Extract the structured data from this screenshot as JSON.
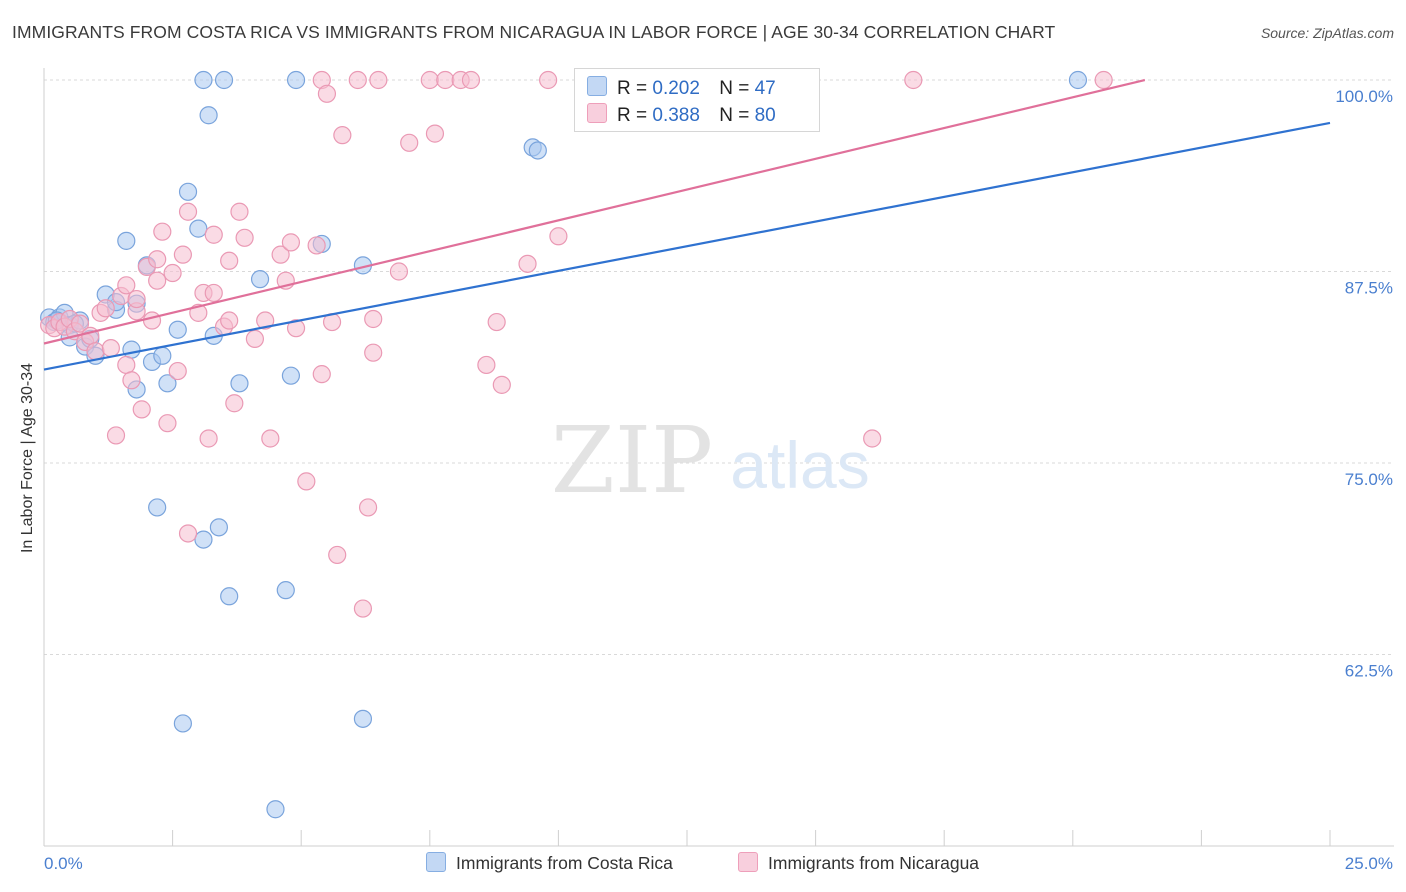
{
  "title": "IMMIGRANTS FROM COSTA RICA VS IMMIGRANTS FROM NICARAGUA IN LABOR FORCE | AGE 30-34 CORRELATION CHART",
  "source": "Source: ZipAtlas.com",
  "watermark": {
    "zip": "ZIP",
    "atlas": "atlas"
  },
  "colors": {
    "blue_fill": "#aac8f0",
    "blue_stroke": "#7aa4dc",
    "blue_line": "#2f72d0",
    "pink_fill": "#f5bdd0",
    "pink_stroke": "#ea99b4",
    "pink_line": "#e0709a",
    "tick_label": "#4a7fcf",
    "grid": "#d9d9d9"
  },
  "legend": {
    "r_label": "R =",
    "n_label": "N =",
    "rows": [
      {
        "series": "Immigrants from Costa Rica",
        "r": "0.202",
        "n": "47"
      },
      {
        "series": "Immigrants from Nicaragua",
        "r": "0.388",
        "n": "80"
      }
    ]
  },
  "chart_data": {
    "type": "scatter",
    "title": "IMMIGRANTS FROM COSTA RICA VS IMMIGRANTS FROM NICARAGUA IN LABOR FORCE | AGE 30-34 CORRELATION CHART",
    "xlabel": "",
    "ylabel": "In Labor Force | Age 30-34",
    "xlim": [
      0,
      25
    ],
    "ylim": [
      50,
      100
    ],
    "x_tick_labels": [
      "0.0%",
      "25.0%"
    ],
    "y_ticks": [
      62.5,
      75.0,
      87.5,
      100.0
    ],
    "y_tick_labels": [
      "62.5%",
      "75.0%",
      "87.5%",
      "100.0%"
    ],
    "grid": true,
    "legend_position": "top-center",
    "series": [
      {
        "name": "Immigrants from Costa Rica",
        "r": 0.202,
        "n": 47,
        "trend": {
          "x": [
            0,
            25
          ],
          "y": [
            81.1,
            97.2
          ]
        },
        "points": [
          [
            0.1,
            84.5
          ],
          [
            0.2,
            84.2
          ],
          [
            0.3,
            84.5
          ],
          [
            0.4,
            84.8
          ],
          [
            0.5,
            84.0
          ],
          [
            0.5,
            83.2
          ],
          [
            0.7,
            84.3
          ],
          [
            0.8,
            82.6
          ],
          [
            0.9,
            83.1
          ],
          [
            1.0,
            82.0
          ],
          [
            1.2,
            86.0
          ],
          [
            1.4,
            85.0
          ],
          [
            1.4,
            85.5
          ],
          [
            1.6,
            89.5
          ],
          [
            1.7,
            82.4
          ],
          [
            1.8,
            79.8
          ],
          [
            1.8,
            85.4
          ],
          [
            2.0,
            87.9
          ],
          [
            2.1,
            81.6
          ],
          [
            2.2,
            72.1
          ],
          [
            2.3,
            82.0
          ],
          [
            2.4,
            80.2
          ],
          [
            2.6,
            83.7
          ],
          [
            2.7,
            58.0
          ],
          [
            2.8,
            92.7
          ],
          [
            3.0,
            90.3
          ],
          [
            3.1,
            70.0
          ],
          [
            3.1,
            100.0
          ],
          [
            3.2,
            97.7
          ],
          [
            3.3,
            83.3
          ],
          [
            3.4,
            70.8
          ],
          [
            3.5,
            100.0
          ],
          [
            3.6,
            66.3
          ],
          [
            3.8,
            80.2
          ],
          [
            4.2,
            87.0
          ],
          [
            4.5,
            52.4
          ],
          [
            4.7,
            66.7
          ],
          [
            4.8,
            80.7
          ],
          [
            4.9,
            100.0
          ],
          [
            5.4,
            89.3
          ],
          [
            6.2,
            87.9
          ],
          [
            6.2,
            58.3
          ],
          [
            9.5,
            95.6
          ],
          [
            9.6,
            95.4
          ],
          [
            20.1,
            100.0
          ],
          [
            0.25,
            84.3
          ],
          [
            0.6,
            84.1
          ]
        ]
      },
      {
        "name": "Immigrants from Nicaragua",
        "r": 0.388,
        "n": 80,
        "trend": {
          "x": [
            0,
            21.4
          ],
          "y": [
            82.8,
            100.0
          ]
        },
        "points": [
          [
            0.1,
            84.0
          ],
          [
            0.2,
            83.8
          ],
          [
            0.3,
            84.2
          ],
          [
            0.4,
            83.9
          ],
          [
            0.5,
            84.4
          ],
          [
            0.6,
            83.6
          ],
          [
            0.7,
            84.1
          ],
          [
            0.8,
            82.9
          ],
          [
            0.9,
            83.3
          ],
          [
            1.0,
            82.3
          ],
          [
            1.1,
            84.8
          ],
          [
            1.2,
            85.1
          ],
          [
            1.3,
            82.5
          ],
          [
            1.4,
            76.8
          ],
          [
            1.5,
            85.9
          ],
          [
            1.6,
            81.4
          ],
          [
            1.6,
            86.6
          ],
          [
            1.7,
            80.4
          ],
          [
            1.8,
            84.9
          ],
          [
            1.8,
            85.7
          ],
          [
            1.9,
            78.5
          ],
          [
            2.0,
            87.8
          ],
          [
            2.1,
            84.3
          ],
          [
            2.2,
            88.3
          ],
          [
            2.2,
            86.9
          ],
          [
            2.3,
            90.1
          ],
          [
            2.4,
            77.6
          ],
          [
            2.5,
            87.4
          ],
          [
            2.6,
            81.0
          ],
          [
            2.7,
            88.6
          ],
          [
            2.8,
            91.4
          ],
          [
            2.8,
            70.4
          ],
          [
            3.0,
            84.8
          ],
          [
            3.1,
            86.1
          ],
          [
            3.2,
            76.6
          ],
          [
            3.3,
            86.1
          ],
          [
            3.3,
            89.9
          ],
          [
            3.5,
            83.9
          ],
          [
            3.6,
            84.3
          ],
          [
            3.6,
            88.2
          ],
          [
            3.7,
            78.9
          ],
          [
            3.8,
            91.4
          ],
          [
            3.9,
            89.7
          ],
          [
            4.1,
            83.1
          ],
          [
            4.3,
            84.3
          ],
          [
            4.4,
            76.6
          ],
          [
            4.6,
            88.6
          ],
          [
            4.7,
            86.9
          ],
          [
            4.8,
            89.4
          ],
          [
            4.9,
            83.8
          ],
          [
            5.1,
            73.8
          ],
          [
            5.3,
            89.2
          ],
          [
            5.4,
            80.8
          ],
          [
            5.4,
            100.0
          ],
          [
            5.5,
            99.1
          ],
          [
            5.6,
            84.2
          ],
          [
            5.7,
            69.0
          ],
          [
            5.8,
            96.4
          ],
          [
            6.1,
            100.0
          ],
          [
            6.2,
            65.5
          ],
          [
            6.3,
            72.1
          ],
          [
            6.4,
            84.4
          ],
          [
            6.4,
            82.2
          ],
          [
            6.5,
            100.0
          ],
          [
            6.9,
            87.5
          ],
          [
            7.1,
            95.9
          ],
          [
            7.5,
            100.0
          ],
          [
            7.6,
            96.5
          ],
          [
            7.8,
            100.0
          ],
          [
            8.1,
            100.0
          ],
          [
            8.3,
            100.0
          ],
          [
            8.6,
            81.4
          ],
          [
            8.8,
            84.2
          ],
          [
            8.9,
            80.1
          ],
          [
            9.4,
            88.0
          ],
          [
            9.8,
            100.0
          ],
          [
            10.0,
            89.8
          ],
          [
            16.1,
            76.6
          ],
          [
            16.9,
            100.0
          ],
          [
            20.6,
            100.0
          ]
        ]
      }
    ]
  }
}
